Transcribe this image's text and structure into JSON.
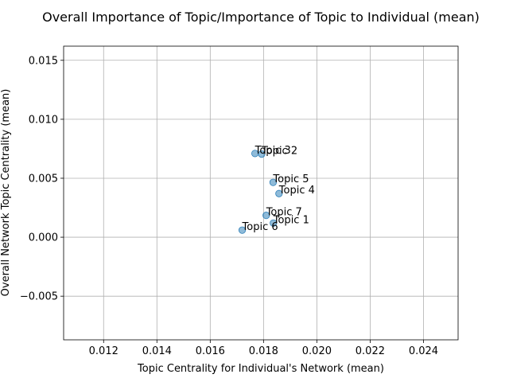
{
  "chart_data": {
    "type": "scatter",
    "title": "Overall Importance of Topic/Importance of Topic to Individual (mean)",
    "xlabel": "Topic Centrality for Individual's Network (mean)",
    "ylabel": "Overall Network Topic Centrality (mean)",
    "xlim": [
      0.0105,
      0.0253
    ],
    "ylim": [
      -0.0087,
      0.0162
    ],
    "xticks": [
      0.012,
      0.014,
      0.016,
      0.018,
      0.02,
      0.022,
      0.024
    ],
    "xtick_labels": [
      "0.012",
      "0.014",
      "0.016",
      "0.018",
      "0.020",
      "0.022",
      "0.024"
    ],
    "yticks": [
      -0.005,
      0.0,
      0.005,
      0.01,
      0.015
    ],
    "ytick_labels": [
      "−0.005",
      "0.000",
      "0.005",
      "0.010",
      "0.015"
    ],
    "grid": true,
    "point_color": "#1f77b4",
    "point_alpha": 0.5,
    "points": [
      {
        "label": "Topic 3",
        "x": 0.01768,
        "y": 0.0071
      },
      {
        "label": "Topic 2",
        "x": 0.01793,
        "y": 0.00705
      },
      {
        "label": "Topic 5",
        "x": 0.01836,
        "y": 0.00465
      },
      {
        "label": "Topic 4",
        "x": 0.01858,
        "y": 0.0037
      },
      {
        "label": "Topic 7",
        "x": 0.0181,
        "y": 0.00185
      },
      {
        "label": "Topic 1",
        "x": 0.01837,
        "y": 0.0012
      },
      {
        "label": "Topic 6",
        "x": 0.0172,
        "y": 0.0006
      }
    ]
  }
}
